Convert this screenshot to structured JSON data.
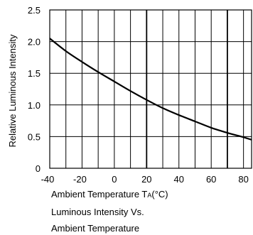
{
  "chart_data": {
    "type": "line",
    "title": "Luminous Intensity Vs. Ambient Temperature",
    "title_lines": [
      "Luminous Intensity Vs.",
      "Ambient Temperature"
    ],
    "xlabel": {
      "prefix": "Ambient Temperature T",
      "sub": "A",
      "suffix": "(°C)"
    },
    "ylabel": "Relative Luminous Intensity",
    "xlim": [
      -40,
      85
    ],
    "ylim": [
      0,
      2.5
    ],
    "xticks": [
      "-40",
      "-20",
      "0",
      "20",
      "40",
      "60",
      "80"
    ],
    "xtick_values": [
      -40,
      -20,
      0,
      20,
      40,
      60,
      80
    ],
    "yticks": [
      "0",
      "0.5",
      "1.0",
      "1.5",
      "2.0",
      "2.5"
    ],
    "ytick_values": [
      0,
      0.5,
      1.0,
      1.5,
      2.0,
      2.5
    ],
    "grid": true,
    "vertical_grid_values": [
      -30,
      -20,
      -10,
      0,
      10,
      20,
      30,
      40,
      50,
      60,
      70,
      80
    ],
    "emphasized_grid_values": [
      20,
      70
    ],
    "horizontal_grid_values": [
      0.5,
      1.0,
      1.5,
      2.0
    ],
    "series": [
      {
        "x": [
          -40,
          -30,
          -20,
          -10,
          0,
          10,
          20,
          30,
          40,
          50,
          60,
          70,
          80,
          85
        ],
        "y": [
          2.05,
          1.85,
          1.68,
          1.52,
          1.37,
          1.22,
          1.08,
          0.95,
          0.84,
          0.74,
          0.64,
          0.56,
          0.49,
          0.45
        ]
      }
    ]
  }
}
